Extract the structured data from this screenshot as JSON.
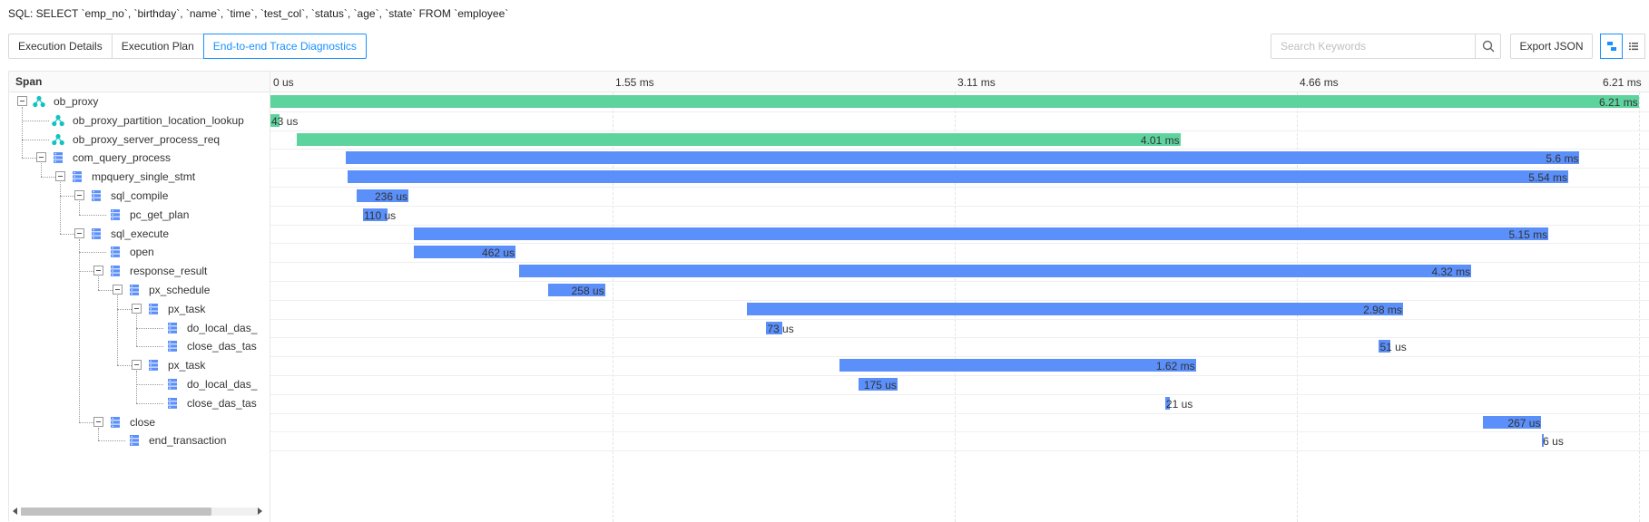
{
  "sql": "SQL: SELECT `emp_no`, `birthday`, `name`, `time`, `test_col`, `status`, `age`, `state` FROM `employee`",
  "tabs": [
    {
      "label": "Execution Details",
      "active": false
    },
    {
      "label": "Execution Plan",
      "active": false
    },
    {
      "label": "End-to-end Trace Diagnostics",
      "active": true
    }
  ],
  "search": {
    "placeholder": "Search Keywords",
    "value": ""
  },
  "export_label": "Export JSON",
  "column_header": "Span",
  "ticks": [
    "0 us",
    "1.55 ms",
    "3.11 ms",
    "4.66 ms",
    "6.21 ms"
  ],
  "timeline_total_us": 6210,
  "colors": {
    "proxy": "#5dd39e",
    "server": "#5b8ff9",
    "proxy_icon": "#13c2c2",
    "server_icon": "#5b8ff9",
    "active": "#1890ff"
  },
  "spans": [
    {
      "name": "ob_proxy",
      "depth": 0,
      "icon": "proxy-node-icon",
      "toggle": true,
      "start_us": 0,
      "duration_us": 6210,
      "label": "6.21 ms",
      "kind": "proxy"
    },
    {
      "name": "ob_proxy_partition_location_lookup",
      "depth": 1,
      "icon": "proxy-node-icon",
      "toggle": false,
      "start_us": 0,
      "duration_us": 43,
      "label": "43 us",
      "kind": "proxy"
    },
    {
      "name": "ob_proxy_server_process_req",
      "depth": 1,
      "icon": "proxy-node-icon",
      "toggle": false,
      "start_us": 120,
      "duration_us": 4010,
      "label": "4.01 ms",
      "kind": "proxy"
    },
    {
      "name": "com_query_process",
      "depth": 1,
      "icon": "server-node-icon",
      "toggle": true,
      "start_us": 340,
      "duration_us": 5600,
      "label": "5.6 ms",
      "kind": "server"
    },
    {
      "name": "mpquery_single_stmt",
      "depth": 2,
      "icon": "server-node-icon",
      "toggle": true,
      "start_us": 350,
      "duration_us": 5540,
      "label": "5.54 ms",
      "kind": "server"
    },
    {
      "name": "sql_compile",
      "depth": 3,
      "icon": "server-node-icon",
      "toggle": true,
      "start_us": 390,
      "duration_us": 236,
      "label": "236 us",
      "kind": "server"
    },
    {
      "name": "pc_get_plan",
      "depth": 4,
      "icon": "server-node-icon",
      "toggle": false,
      "start_us": 420,
      "duration_us": 110,
      "label": "110 us",
      "kind": "server"
    },
    {
      "name": "sql_execute",
      "depth": 3,
      "icon": "server-node-icon",
      "toggle": true,
      "start_us": 650,
      "duration_us": 5150,
      "label": "5.15 ms",
      "kind": "server"
    },
    {
      "name": "open",
      "depth": 4,
      "icon": "server-node-icon",
      "toggle": false,
      "start_us": 650,
      "duration_us": 462,
      "label": "462 us",
      "kind": "server"
    },
    {
      "name": "response_result",
      "depth": 4,
      "icon": "server-node-icon",
      "toggle": true,
      "start_us": 1130,
      "duration_us": 4320,
      "label": "4.32 ms",
      "kind": "server"
    },
    {
      "name": "px_schedule",
      "depth": 5,
      "icon": "server-node-icon",
      "toggle": true,
      "start_us": 1260,
      "duration_us": 258,
      "label": "258 us",
      "kind": "server"
    },
    {
      "name": "px_task",
      "depth": 6,
      "icon": "server-node-icon",
      "toggle": true,
      "start_us": 2160,
      "duration_us": 2980,
      "label": "2.98 ms",
      "kind": "server"
    },
    {
      "name": "do_local_das_",
      "depth": 7,
      "icon": "server-node-icon",
      "toggle": false,
      "start_us": 2250,
      "duration_us": 73,
      "label": "73 us",
      "kind": "server"
    },
    {
      "name": "close_das_tas",
      "depth": 7,
      "icon": "server-node-icon",
      "toggle": false,
      "start_us": 5030,
      "duration_us": 51,
      "label": "51 us",
      "kind": "server"
    },
    {
      "name": "px_task",
      "depth": 6,
      "icon": "server-node-icon",
      "toggle": true,
      "start_us": 2580,
      "duration_us": 1620,
      "label": "1.62 ms",
      "kind": "server"
    },
    {
      "name": "do_local_das_",
      "depth": 7,
      "icon": "server-node-icon",
      "toggle": false,
      "start_us": 2670,
      "duration_us": 175,
      "label": "175 us",
      "kind": "server"
    },
    {
      "name": "close_das_tas",
      "depth": 7,
      "icon": "server-node-icon",
      "toggle": false,
      "start_us": 4060,
      "duration_us": 21,
      "label": "21 us",
      "kind": "server"
    },
    {
      "name": "close",
      "depth": 4,
      "icon": "server-node-icon",
      "toggle": true,
      "start_us": 5500,
      "duration_us": 267,
      "label": "267 us",
      "kind": "server"
    },
    {
      "name": "end_transaction",
      "depth": 5,
      "icon": "server-node-icon",
      "toggle": false,
      "start_us": 5770,
      "duration_us": 6,
      "label": "6 us",
      "kind": "server"
    }
  ]
}
